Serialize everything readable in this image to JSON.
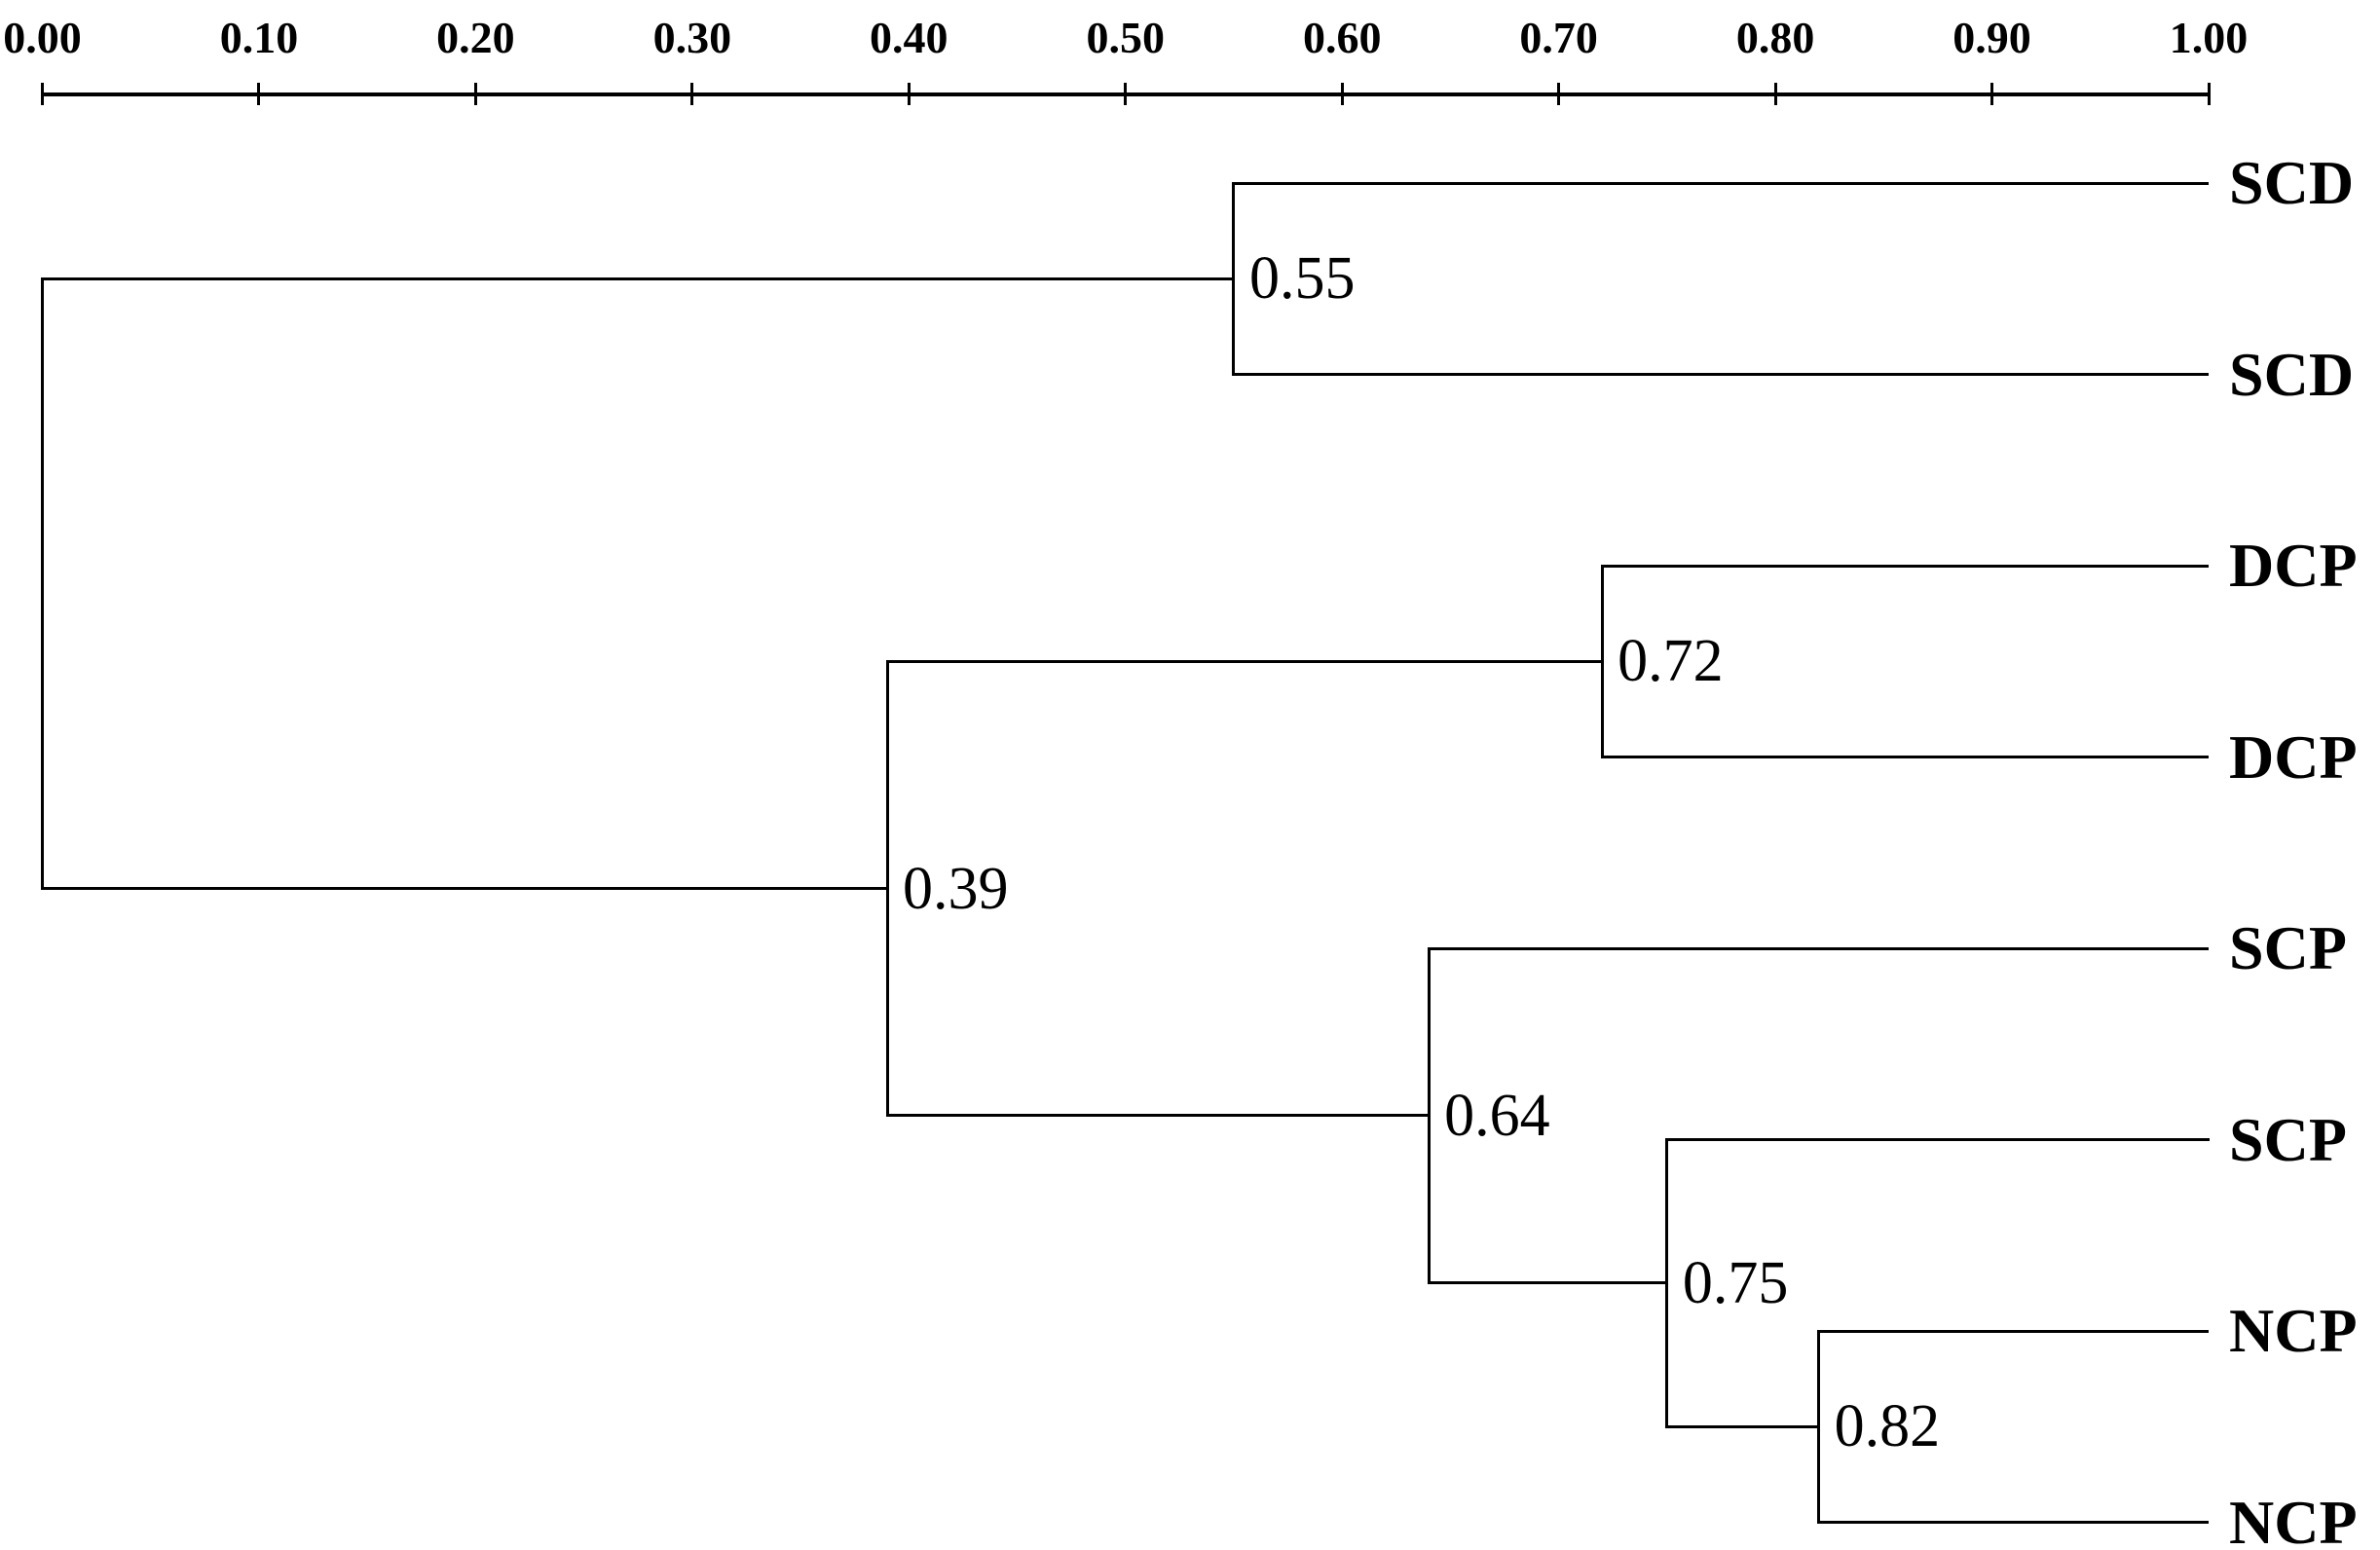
{
  "figure": {
    "background_color": "#ffffff",
    "line_color": "#000000",
    "text_color": "#000000"
  },
  "chart_data": {
    "type": "dendrogram",
    "orientation": "horizontal",
    "legend": "none",
    "grid": "off",
    "axis": {
      "position": "top",
      "range": [
        0.0,
        1.0
      ],
      "tick_step": 0.1,
      "tick_labels": [
        "0.00",
        "0.10",
        "0.20",
        "0.30",
        "0.40",
        "0.50",
        "0.60",
        "0.70",
        "0.80",
        "0.90",
        "1.00"
      ]
    },
    "leaves": [
      "SCD",
      "SCD",
      "DCP",
      "DCP",
      "SCP",
      "SCP",
      "NCP",
      "NCP"
    ],
    "merge_values": [
      0.55,
      0.72,
      0.39,
      0.64,
      0.75,
      0.82
    ],
    "tree": {
      "value": 0.0,
      "children": [
        {
          "merge": "0.55",
          "value": 0.55,
          "children": [
            {
              "leaf": "SCD"
            },
            {
              "leaf": "SCD"
            }
          ]
        },
        {
          "merge": "0.39",
          "value": 0.39,
          "children": [
            {
              "merge": "0.72",
              "value": 0.72,
              "children": [
                {
                  "leaf": "DCP"
                },
                {
                  "leaf": "DCP"
                }
              ]
            },
            {
              "merge": "0.64",
              "value": 0.64,
              "children": [
                {
                  "leaf": "SCP"
                },
                {
                  "merge": "0.75",
                  "value": 0.75,
                  "children": [
                    {
                      "leaf": "SCP"
                    },
                    {
                      "merge": "0.82",
                      "value": 0.82,
                      "children": [
                        {
                          "leaf": "NCP"
                        },
                        {
                          "leaf": "NCP"
                        }
                      ]
                    }
                  ]
                }
              ]
            }
          ]
        }
      ]
    }
  }
}
